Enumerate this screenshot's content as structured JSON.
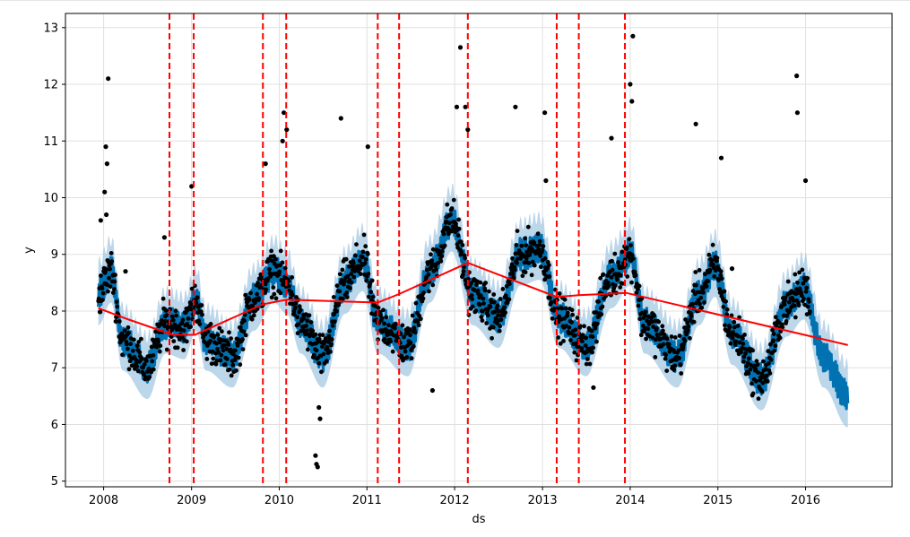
{
  "chart_data": {
    "type": "scatter",
    "title": "",
    "xlabel": "ds",
    "ylabel": "y",
    "xlim": [
      "2007-07-26",
      "2016-12-26"
    ],
    "ylim": [
      4.9,
      13.25
    ],
    "grid": true,
    "x_ticks": [
      {
        "value": "2008-01-01",
        "label": "2008"
      },
      {
        "value": "2009-01-01",
        "label": "2009"
      },
      {
        "value": "2010-01-01",
        "label": "2010"
      },
      {
        "value": "2011-01-01",
        "label": "2011"
      },
      {
        "value": "2012-01-01",
        "label": "2012"
      },
      {
        "value": "2013-01-01",
        "label": "2013"
      },
      {
        "value": "2014-01-01",
        "label": "2014"
      },
      {
        "value": "2015-01-01",
        "label": "2015"
      },
      {
        "value": "2016-01-01",
        "label": "2016"
      }
    ],
    "y_ticks": [
      5,
      6,
      7,
      8,
      9,
      10,
      11,
      12,
      13
    ],
    "colors": {
      "points": "#000000",
      "forecast": "#0072b2",
      "interval": "#a6c8e3",
      "trend": "#ff0000",
      "changepoint": "#ff0000",
      "grid": "#e0e0e0"
    },
    "series": [
      {
        "kind": "trend",
        "points": [
          [
            "2007-12-10",
            8.05
          ],
          [
            "2008-04-15",
            7.85
          ],
          [
            "2008-10-15",
            7.58
          ],
          [
            "2009-01-15",
            7.58
          ],
          [
            "2009-10-25",
            8.12
          ],
          [
            "2010-02-01",
            8.2
          ],
          [
            "2011-02-15",
            8.15
          ],
          [
            "2011-05-15",
            8.3
          ],
          [
            "2012-02-25",
            8.85
          ],
          [
            "2013-03-01",
            8.25
          ],
          [
            "2013-06-01",
            8.28
          ],
          [
            "2013-12-15",
            8.32
          ],
          [
            "2016-06-25",
            7.4
          ]
        ]
      },
      {
        "kind": "forecast",
        "anchors": [
          [
            "2007-12-10",
            8.3
          ],
          [
            "2008-02-01",
            8.7
          ],
          [
            "2008-03-20",
            7.5
          ],
          [
            "2008-07-01",
            7.0
          ],
          [
            "2008-09-15",
            7.8
          ],
          [
            "2008-12-01",
            7.7
          ],
          [
            "2009-01-20",
            8.2
          ],
          [
            "2009-03-01",
            7.5
          ],
          [
            "2009-06-20",
            7.2
          ],
          [
            "2009-09-15",
            8.2
          ],
          [
            "2009-12-10",
            8.7
          ],
          [
            "2010-02-01",
            8.5
          ],
          [
            "2010-04-01",
            7.8
          ],
          [
            "2010-07-01",
            7.2
          ],
          [
            "2010-10-01",
            8.5
          ],
          [
            "2010-12-15",
            8.9
          ],
          [
            "2011-02-15",
            7.8
          ],
          [
            "2011-06-20",
            7.4
          ],
          [
            "2011-09-20",
            8.7
          ],
          [
            "2011-12-20",
            9.6
          ],
          [
            "2012-03-15",
            8.3
          ],
          [
            "2012-07-01",
            7.9
          ],
          [
            "2012-10-01",
            9.0
          ],
          [
            "2012-12-20",
            9.1
          ],
          [
            "2013-03-10",
            7.9
          ],
          [
            "2013-07-01",
            7.4
          ],
          [
            "2013-10-15",
            8.6
          ],
          [
            "2014-01-01",
            9.0
          ],
          [
            "2014-03-01",
            7.8
          ],
          [
            "2014-07-15",
            7.2
          ],
          [
            "2014-10-15",
            8.3
          ],
          [
            "2014-12-20",
            8.8
          ],
          [
            "2015-03-01",
            7.6
          ],
          [
            "2015-07-01",
            6.8
          ],
          [
            "2015-10-15",
            8.1
          ],
          [
            "2015-12-25",
            8.4
          ],
          [
            "2016-03-15",
            7.2
          ],
          [
            "2016-06-25",
            6.5
          ]
        ],
        "interval_halfwidth": 0.55
      }
    ],
    "changepoints": [
      "2008-10-01",
      "2009-01-10",
      "2009-10-25",
      "2010-01-30",
      "2011-02-15",
      "2011-05-15",
      "2012-02-25",
      "2013-03-01",
      "2013-06-01",
      "2013-12-10"
    ],
    "observations": [
      [
        "2008-01-20",
        12.1
      ],
      [
        "2008-01-10",
        10.9
      ],
      [
        "2008-01-15",
        10.6
      ],
      [
        "2008-01-05",
        10.1
      ],
      [
        "2008-01-12",
        9.7
      ],
      [
        "2007-12-20",
        9.6
      ],
      [
        "2008-04-01",
        8.7
      ],
      [
        "2008-09-10",
        9.3
      ],
      [
        "2009-01-01",
        10.2
      ],
      [
        "2009-11-05",
        10.6
      ],
      [
        "2010-01-15",
        11.0
      ],
      [
        "2010-01-20",
        11.5
      ],
      [
        "2010-02-01",
        11.2
      ],
      [
        "2010-06-01",
        5.45
      ],
      [
        "2010-06-05",
        5.3
      ],
      [
        "2010-06-10",
        5.25
      ],
      [
        "2010-06-15",
        6.3
      ],
      [
        "2010-06-20",
        6.1
      ],
      [
        "2010-09-15",
        11.4
      ],
      [
        "2011-01-05",
        10.9
      ],
      [
        "2011-10-01",
        6.6
      ],
      [
        "2012-01-10",
        11.6
      ],
      [
        "2012-01-25",
        12.65
      ],
      [
        "2012-02-15",
        11.6
      ],
      [
        "2012-02-25",
        11.2
      ],
      [
        "2012-09-10",
        11.6
      ],
      [
        "2013-01-10",
        11.5
      ],
      [
        "2013-01-15",
        10.3
      ],
      [
        "2013-08-01",
        6.65
      ],
      [
        "2013-10-15",
        11.05
      ],
      [
        "2014-01-01",
        12.0
      ],
      [
        "2014-01-08",
        11.7
      ],
      [
        "2014-01-12",
        12.85
      ],
      [
        "2014-10-01",
        11.3
      ],
      [
        "2015-01-15",
        10.7
      ],
      [
        "2015-03-01",
        8.75
      ],
      [
        "2015-11-25",
        12.15
      ],
      [
        "2015-11-28",
        11.5
      ],
      [
        "2016-01-01",
        10.3
      ]
    ]
  }
}
